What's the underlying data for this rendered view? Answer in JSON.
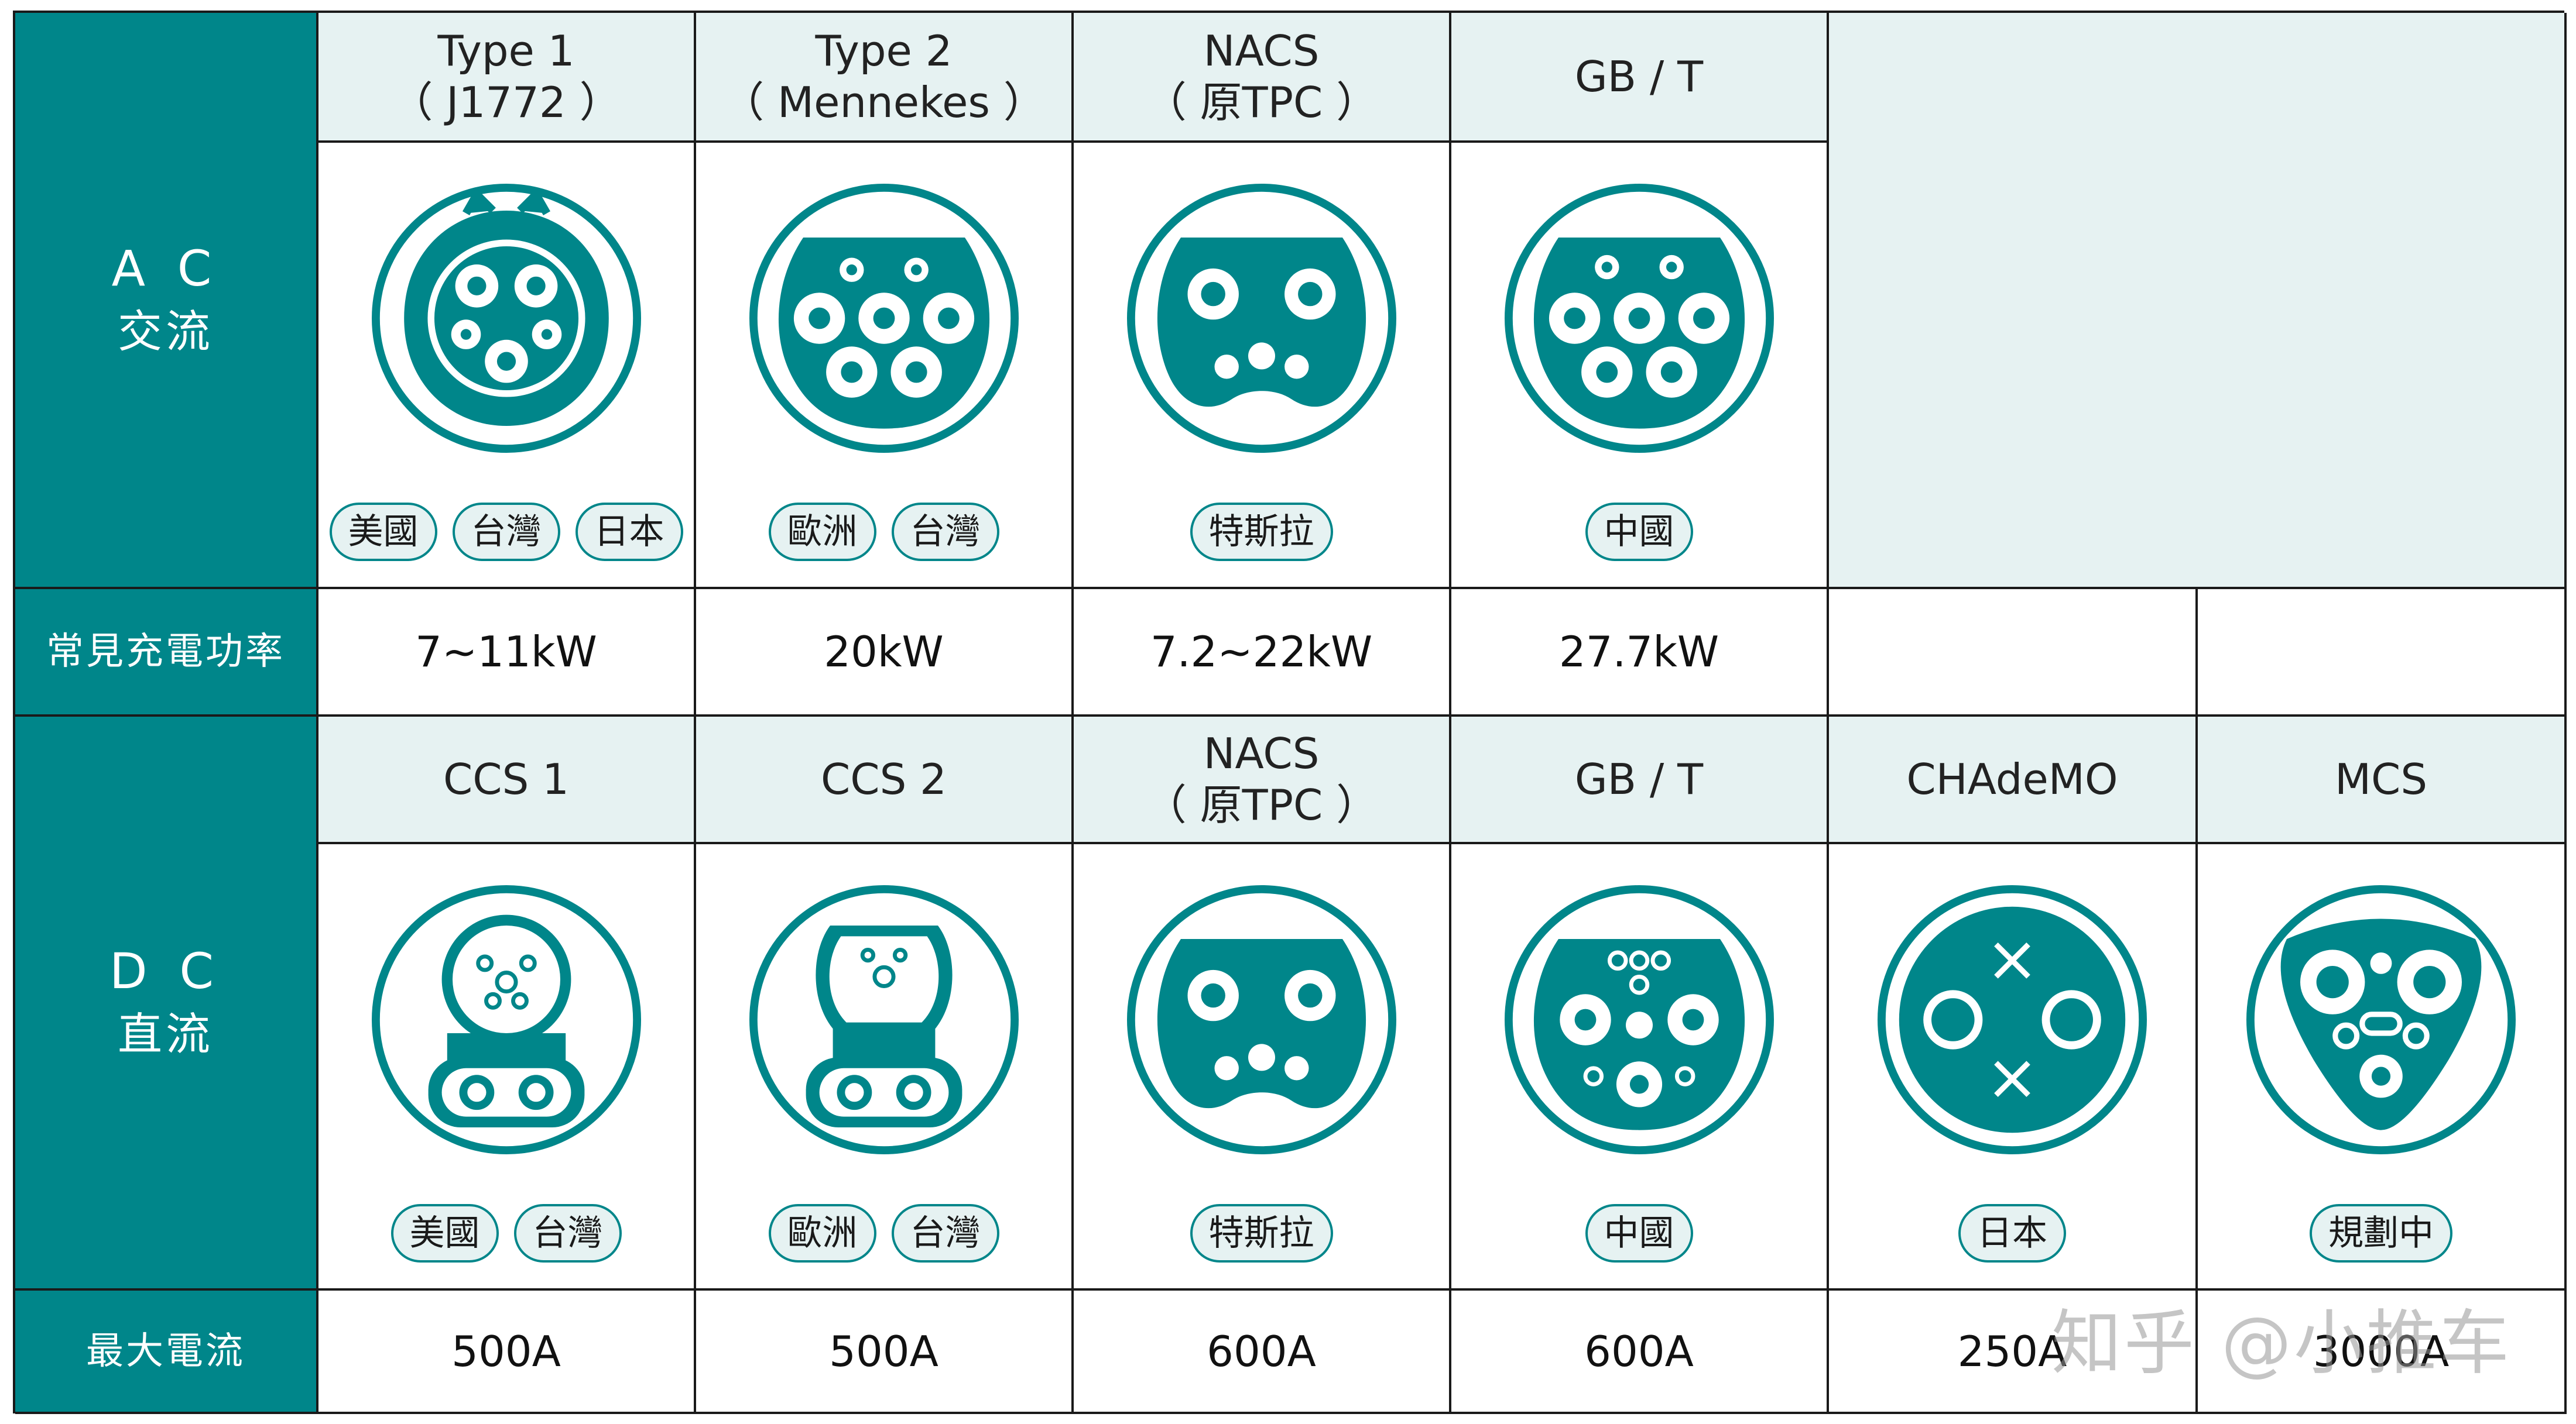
{
  "colors": {
    "teal": "#00868a",
    "light": "#e6f2f2",
    "tag_bg": "#e6f2f2"
  },
  "ac": {
    "label_big": "A C",
    "label_zh": "交流",
    "headers": [
      {
        "l1": "Type 1",
        "l2": "（ J1772 ）"
      },
      {
        "l1": "Type 2",
        "l2": "（ Mennekes ）"
      },
      {
        "l1": "NACS",
        "l2": "（ 原TPC ）"
      },
      {
        "l1": "GB / T",
        "l2": ""
      }
    ],
    "icons": [
      "type1-connector-icon",
      "type2-connector-icon",
      "nacs-connector-icon",
      "gbt-ac-connector-icon"
    ],
    "tags": [
      [
        "美國",
        "台灣",
        "日本"
      ],
      [
        "歐洲",
        "台灣"
      ],
      [
        "特斯拉"
      ],
      [
        "中國"
      ]
    ]
  },
  "power": {
    "label": "常見充電功率",
    "values": [
      "7~11kW",
      "20kW",
      "7.2~22kW",
      "27.7kW",
      "",
      ""
    ]
  },
  "dc": {
    "label_big": "D C",
    "label_zh": "直流",
    "headers": [
      {
        "l1": "CCS 1",
        "l2": ""
      },
      {
        "l1": "CCS 2",
        "l2": ""
      },
      {
        "l1": "NACS",
        "l2": "（ 原TPC ）"
      },
      {
        "l1": "GB / T",
        "l2": ""
      },
      {
        "l1": "CHAdeMO",
        "l2": ""
      },
      {
        "l1": "MCS",
        "l2": ""
      }
    ],
    "icons": [
      "ccs1-connector-icon",
      "ccs2-connector-icon",
      "nacs-dc-connector-icon",
      "gbt-dc-connector-icon",
      "chademo-connector-icon",
      "mcs-connector-icon"
    ],
    "tags": [
      [
        "美國",
        "台灣"
      ],
      [
        "歐洲",
        "台灣"
      ],
      [
        "特斯拉"
      ],
      [
        "中國"
      ],
      [
        "日本"
      ],
      [
        "規劃中"
      ]
    ]
  },
  "current": {
    "label": "最大電流",
    "values": [
      "500A",
      "500A",
      "600A",
      "600A",
      "250A",
      "3000A"
    ]
  },
  "watermark": "知乎 @小推车"
}
